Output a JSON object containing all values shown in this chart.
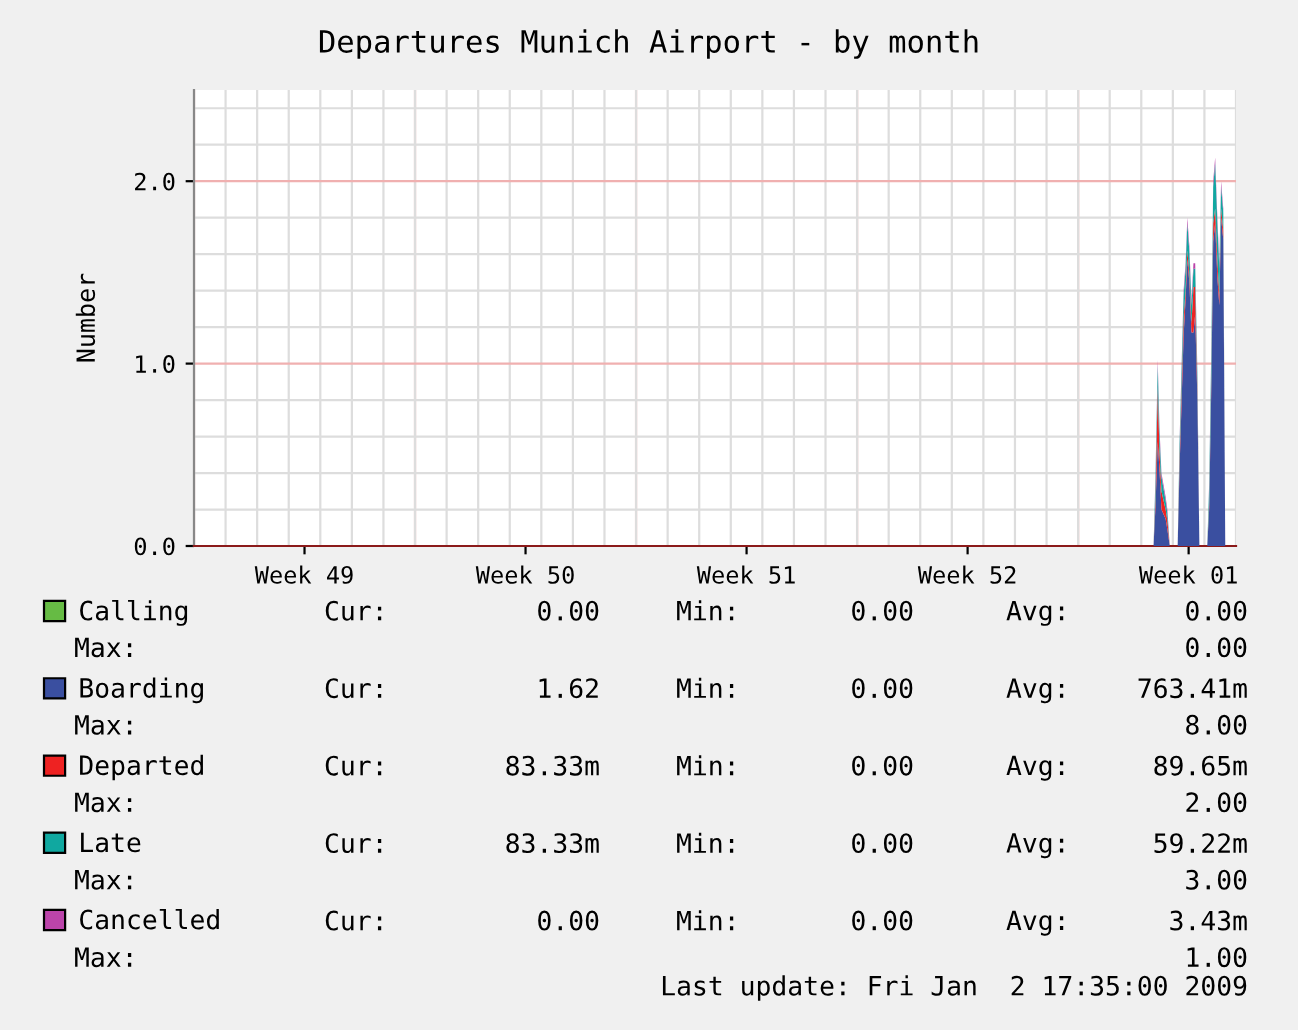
{
  "chart_data": {
    "type": "area",
    "title": "Departures Munich Airport - by month",
    "ylabel": "Number",
    "stacked": true,
    "x": [
      "2008-12-31T09:20",
      "2008-12-31T10:50",
      "2008-12-31T12:30",
      "2008-12-31T13:50",
      "2008-12-31T15:20",
      "2008-12-31T18:30",
      "2008-12-31T19:50",
      "2008-12-31T21:40",
      "2009-01-01T03:40",
      "2009-01-01T05:00",
      "2009-01-01T08:10",
      "2009-01-01T09:40",
      "2009-01-01T11:00",
      "2009-01-01T12:30",
      "2009-01-01T14:10",
      "2009-01-01T15:40",
      "2009-01-01T17:00",
      "2009-01-01T18:40",
      "2009-01-01T20:10",
      "2009-01-02T02:10",
      "2009-01-02T03:40",
      "2009-01-02T05:20",
      "2009-01-02T06:40",
      "2009-01-02T08:10",
      "2009-01-02T09:50",
      "2009-01-02T11:20",
      "2009-01-02T12:40",
      "2009-01-02T14:20",
      "2009-01-02T15:50"
    ],
    "series": [
      {
        "name": "Calling",
        "color": "#66bb44",
        "values": [
          null,
          null,
          null,
          null,
          null,
          null,
          null,
          null,
          null,
          null,
          null,
          null,
          null,
          null,
          null,
          null,
          null,
          null,
          null,
          null,
          null,
          null,
          null,
          null,
          null,
          null,
          null,
          null,
          null
        ]
      },
      {
        "name": "Boarding",
        "color": "#3a4fa0",
        "values": [
          0,
          0.22,
          0.57,
          0.42,
          0.2,
          0.15,
          0.09,
          0,
          0,
          0.4,
          1.15,
          1.35,
          1.57,
          1.45,
          1.17,
          1.17,
          1.27,
          0.8,
          0,
          0,
          0.21,
          0.92,
          1.67,
          1.77,
          1.47,
          1.32,
          1.8,
          1.68,
          0
        ]
      },
      {
        "name": "Departed",
        "color": "#ee2222",
        "values": [
          0,
          0.05,
          0.3,
          0.1,
          0.1,
          0.05,
          0.05,
          0,
          0,
          0.05,
          0.1,
          0.05,
          0.05,
          0.05,
          0.05,
          0.25,
          0.15,
          0.05,
          0,
          0,
          0.03,
          0.05,
          0.1,
          0.08,
          0.1,
          0.05,
          0.05,
          0.05,
          0
        ]
      },
      {
        "name": "Late",
        "color": "#10a8a0",
        "values": [
          0,
          0.1,
          0.12,
          0.1,
          0.08,
          0.05,
          0.04,
          0,
          0,
          0.08,
          0.12,
          0.12,
          0.15,
          0.12,
          0.1,
          0.1,
          0.1,
          0.08,
          0,
          0,
          0.1,
          0.15,
          0.2,
          0.25,
          0.2,
          0.15,
          0.12,
          0.1,
          0
        ]
      },
      {
        "name": "Cancelled",
        "color": "#bb44aa",
        "values": [
          0,
          0.03,
          0.03,
          0.03,
          0.02,
          0.02,
          0.02,
          0,
          0,
          0.02,
          0.03,
          0.03,
          0.03,
          0.03,
          0.03,
          0.03,
          0.03,
          0.02,
          0,
          0,
          0.02,
          0.03,
          0.03,
          0.03,
          0.03,
          0.03,
          0.03,
          0.02,
          0
        ]
      }
    ],
    "xlim": [
      "2008-12-01T00:00",
      "2009-01-03T00:00"
    ],
    "xticks": [
      {
        "value": "2008-12-04T12:00",
        "label": "Week 49"
      },
      {
        "value": "2008-12-11T12:00",
        "label": "Week 50"
      },
      {
        "value": "2008-12-18T12:00",
        "label": "Week 51"
      },
      {
        "value": "2008-12-25T12:00",
        "label": "Week 52"
      },
      {
        "value": "2009-01-01T12:00",
        "label": "Week 01"
      }
    ],
    "ylim": [
      0,
      2.5
    ],
    "yticks": [
      {
        "value": 0,
        "label": "0.0"
      },
      {
        "value": 1,
        "label": "1.0"
      },
      {
        "value": 2,
        "label": "2.0"
      }
    ],
    "grid": true,
    "legend": "bottom",
    "annotations": [
      "Cur:",
      "0.00",
      "Min:",
      "0.00",
      "Avg:",
      "0.00",
      "Max:",
      "0.00",
      "Cur:",
      "1.62",
      "Min:",
      "0.00",
      "Avg:",
      "763.41m",
      "Max:",
      "8.00",
      "Cur:",
      "83.33m",
      "Min:",
      "0.00",
      "Avg:",
      "89.65m",
      "Max:",
      "2.00",
      "Cur:",
      "83.33m",
      "Min:",
      "0.00",
      "Avg:",
      "59.22m",
      "Max:",
      "3.00",
      "Cur:",
      "0.00",
      "Min:",
      "0.00",
      "Avg:",
      "3.43m",
      "Max:",
      "1.00",
      "Last update: Fri Jan  2 17:35:00 2009"
    ]
  }
}
